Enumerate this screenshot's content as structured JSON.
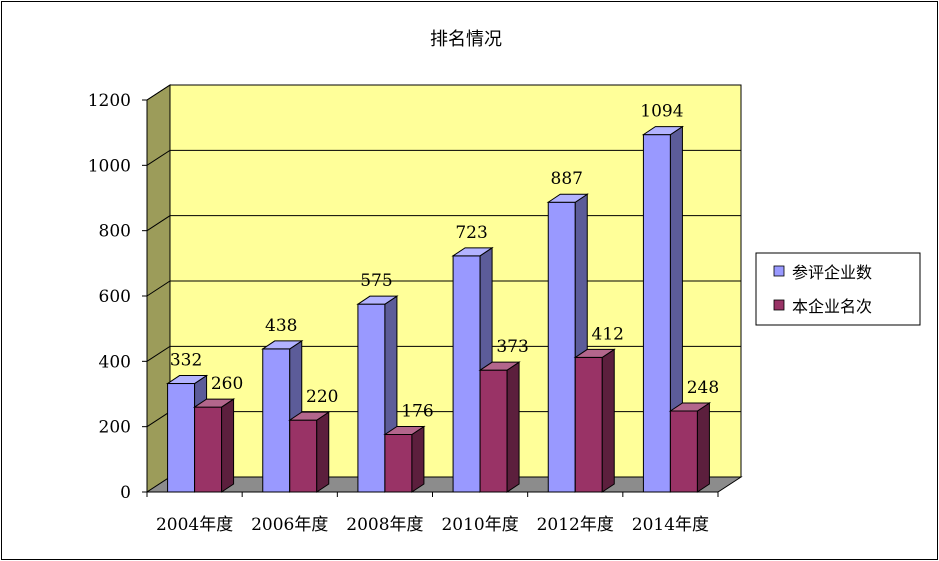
{
  "chart_data": {
    "type": "bar",
    "title": "排名情况",
    "categories": [
      "2004年度",
      "2006年度",
      "2008年度",
      "2010年度",
      "2012年度",
      "2014年度"
    ],
    "series": [
      {
        "name": "参评企业数",
        "values": [
          332,
          438,
          575,
          723,
          887,
          1094
        ],
        "color": "#9999ff"
      },
      {
        "name": "本企业名次",
        "values": [
          260,
          220,
          176,
          373,
          412,
          248
        ],
        "color": "#993366"
      }
    ],
    "ylim": [
      0,
      1200
    ],
    "yticks": [
      0,
      200,
      400,
      600,
      800,
      1000,
      1200
    ],
    "grid": true,
    "legend": "right",
    "wall_color": "#ffff99",
    "side_wall_color": "#9c9c5a",
    "floor_color": "#8c8c8c"
  }
}
